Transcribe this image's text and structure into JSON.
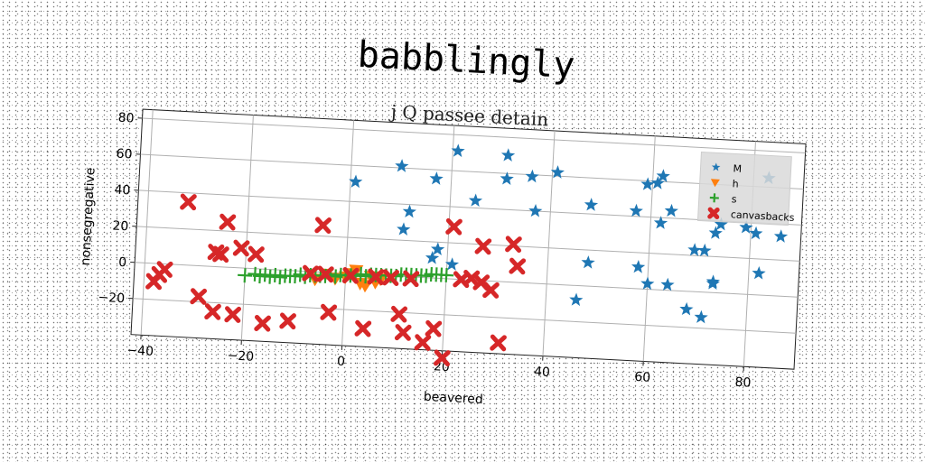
{
  "chart_data": {
    "type": "scatter",
    "title": "babblingly",
    "subtitle": "j Q passee detain",
    "xlabel": "beavered",
    "ylabel": "nonsegregative",
    "xlim": [
      -42,
      90
    ],
    "ylim": [
      -40,
      85
    ],
    "xticks": [
      -40,
      -20,
      0,
      20,
      40,
      60,
      80
    ],
    "yticks": [
      -20,
      0,
      20,
      40,
      60,
      80
    ],
    "grid": true,
    "legend_position": "top-right",
    "series": [
      {
        "name": "M",
        "marker": "star",
        "color": "#1f77b4",
        "points": [
          [
            1,
            51
          ],
          [
            10,
            61
          ],
          [
            12,
            36
          ],
          [
            11,
            26
          ],
          [
            17,
            55
          ],
          [
            18,
            16
          ],
          [
            17,
            11
          ],
          [
            21,
            8
          ],
          [
            21,
            71
          ],
          [
            25,
            44
          ],
          [
            31,
            70
          ],
          [
            31,
            57
          ],
          [
            36,
            59
          ],
          [
            37,
            40
          ],
          [
            41,
            62
          ],
          [
            46,
            -8
          ],
          [
            48,
            13
          ],
          [
            48,
            45
          ],
          [
            57,
            43
          ],
          [
            58,
            12
          ],
          [
            59,
            58
          ],
          [
            60,
            3
          ],
          [
            61,
            59
          ],
          [
            62,
            37
          ],
          [
            62,
            63
          ],
          [
            64,
            3
          ],
          [
            64,
            44
          ],
          [
            68,
            -10
          ],
          [
            69,
            23
          ],
          [
            71,
            23
          ],
          [
            71,
            -14
          ],
          [
            73,
            5
          ],
          [
            73,
            6
          ],
          [
            73,
            33
          ],
          [
            74,
            38
          ],
          [
            79,
            37
          ],
          [
            81,
            34
          ],
          [
            82,
            12
          ],
          [
            83,
            65
          ],
          [
            86,
            33
          ]
        ]
      },
      {
        "name": "h",
        "marker": "triangle-down",
        "color": "#ff7f0e",
        "points": [
          [
            -6,
            -4
          ],
          [
            -4,
            -1
          ],
          [
            -2,
            -3
          ],
          [
            0,
            -2
          ],
          [
            1,
            0
          ],
          [
            2,
            2
          ],
          [
            3,
            -5
          ],
          [
            4,
            -6
          ],
          [
            5,
            -1
          ],
          [
            6,
            -4
          ],
          [
            7,
            -2
          ]
        ]
      },
      {
        "name": "s",
        "marker": "plus",
        "color": "#2ca02c",
        "points": [
          [
            -20,
            -4
          ],
          [
            -18,
            -3
          ],
          [
            -17,
            -4
          ],
          [
            -16,
            -3
          ],
          [
            -15,
            -4
          ],
          [
            -14,
            -3
          ],
          [
            -13,
            -4
          ],
          [
            -12,
            -3
          ],
          [
            -11,
            -3
          ],
          [
            -10,
            -3
          ],
          [
            -9,
            -2
          ],
          [
            -8,
            -3
          ],
          [
            -7,
            -2
          ],
          [
            -6,
            -2
          ],
          [
            -5,
            -2
          ],
          [
            -4,
            -2
          ],
          [
            -3,
            -1
          ],
          [
            -2,
            -2
          ],
          [
            -1,
            -1
          ],
          [
            0,
            -1
          ],
          [
            1,
            -1
          ],
          [
            2,
            -1
          ],
          [
            3,
            0
          ],
          [
            4,
            -1
          ],
          [
            5,
            0
          ],
          [
            6,
            0
          ],
          [
            7,
            0
          ],
          [
            8,
            0
          ],
          [
            9,
            0
          ],
          [
            10,
            0
          ],
          [
            11,
            1
          ],
          [
            12,
            1
          ],
          [
            13,
            1
          ],
          [
            14,
            1
          ],
          [
            15,
            1
          ],
          [
            16,
            1
          ],
          [
            17,
            2
          ],
          [
            18,
            2
          ],
          [
            19,
            2
          ],
          [
            20,
            2
          ]
        ]
      },
      {
        "name": "canvasbacks",
        "marker": "x",
        "color": "#d62728",
        "points": [
          [
            -38,
            -10
          ],
          [
            -37,
            -6
          ],
          [
            -36,
            -3
          ],
          [
            -32,
            35
          ],
          [
            -29,
            -17
          ],
          [
            -26,
            -25
          ],
          [
            -26,
            8
          ],
          [
            -25,
            7
          ],
          [
            -24,
            25
          ],
          [
            -22,
            -26
          ],
          [
            -21,
            11
          ],
          [
            -18,
            8
          ],
          [
            -16,
            -30
          ],
          [
            -11,
            -28
          ],
          [
            -7,
            -1
          ],
          [
            -5,
            26
          ],
          [
            -4,
            -1
          ],
          [
            -3,
            -22
          ],
          [
            1,
            -1
          ],
          [
            4,
            -30
          ],
          [
            6,
            -1
          ],
          [
            9,
            -1
          ],
          [
            11,
            -21
          ],
          [
            12,
            -31
          ],
          [
            13,
            -1
          ],
          [
            16,
            -36
          ],
          [
            18,
            -28
          ],
          [
            20,
            -44
          ],
          [
            21,
            29
          ],
          [
            23,
            0
          ],
          [
            25,
            1
          ],
          [
            27,
            -1
          ],
          [
            27,
            19
          ],
          [
            29,
            -5
          ],
          [
            31,
            -34
          ],
          [
            33,
            21
          ],
          [
            34,
            9
          ]
        ]
      }
    ]
  }
}
